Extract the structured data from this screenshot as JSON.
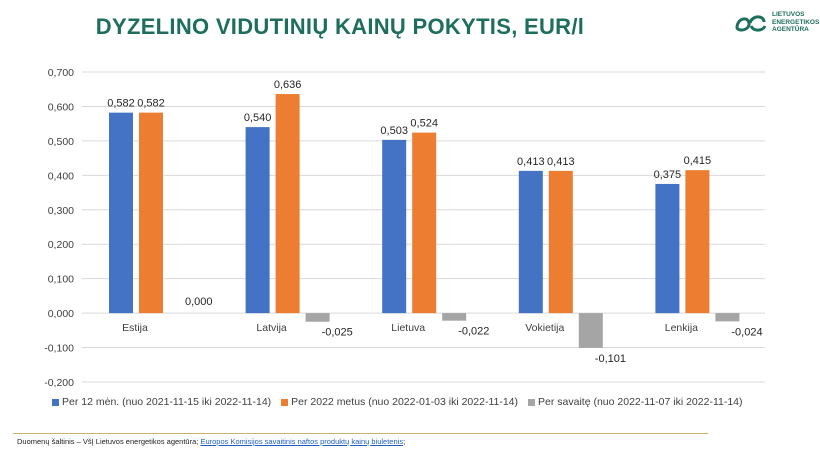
{
  "header": {
    "title": "DYZELINO VIDUTINIŲ KAINŲ POKYTIS, EUR/l",
    "logo_text": [
      "LIETUVOS",
      "ENERGETIKOS",
      "AGENTŪRA"
    ]
  },
  "footer": {
    "source_prefix": "Duomenų šaltinis – VšĮ Lietuvos energetikos agentūra; ",
    "source_link": "Europos Komisijos savaitinis naftos produktų kainų biuletenis",
    "source_suffix": ";"
  },
  "colors": {
    "brand": "#1e6e5e",
    "series": [
      "#4472c4",
      "#ed7d31",
      "#a5a5a5"
    ]
  },
  "chart_data": {
    "type": "bar",
    "categories": [
      "Estija",
      "Latvija",
      "Lietuva",
      "Vokietija",
      "Lenkija"
    ],
    "series": [
      {
        "name": "Per 12 mėn. (nuo 2021-11-15 iki 2022-11-14)",
        "values": [
          0.582,
          0.54,
          0.503,
          0.413,
          0.375
        ],
        "labels": [
          "0,582",
          "0,540",
          "0,503",
          "0,413",
          "0,375"
        ]
      },
      {
        "name": "Per 2022 metus (nuo 2022-01-03 iki 2022-11-14)",
        "values": [
          0.582,
          0.636,
          0.524,
          0.413,
          0.415
        ],
        "labels": [
          "0,582",
          "0,636",
          "0,524",
          "0,413",
          "0,415"
        ]
      },
      {
        "name": "Per savaitę (nuo 2022-11-07 iki 2022-11-14)",
        "values": [
          0.0,
          -0.025,
          -0.022,
          -0.101,
          -0.024
        ],
        "labels": [
          "0,000",
          "-0,025",
          "-0,022",
          "-0,101",
          "-0,024"
        ]
      }
    ],
    "ylim": [
      -0.2,
      0.7
    ],
    "yticks": [
      -0.2,
      -0.1,
      0.0,
      0.1,
      0.2,
      0.3,
      0.4,
      0.5,
      0.6,
      0.7
    ],
    "ytick_labels": [
      "-0,200",
      "-0,100",
      "0,000",
      "0,100",
      "0,200",
      "0,300",
      "0,400",
      "0,500",
      "0,600",
      "0,700"
    ],
    "grid": true,
    "legend": "bottom"
  }
}
